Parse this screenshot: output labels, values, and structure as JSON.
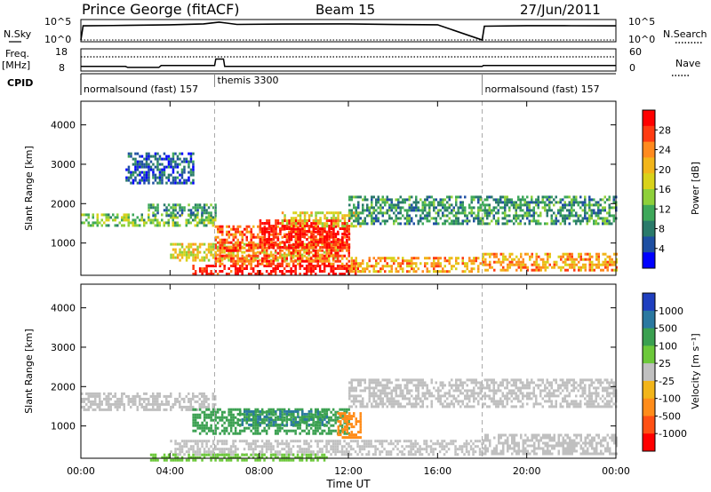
{
  "header": {
    "station": "Prince George (fitACF)",
    "beam": "Beam 15",
    "date": "27/Jun/2011"
  },
  "panels": {
    "nsky": {
      "label": "N.Sky",
      "tick_top": "10^5",
      "tick_bottom": "10^0"
    },
    "nsearch": {
      "label": "N.Search",
      "tick_top": "10^5",
      "tick_bottom": "10^0"
    },
    "freq": {
      "label_line1": "Freq.",
      "label_line2": "[MHz]",
      "tick_top": "18",
      "tick_bottom": "8"
    },
    "nave": {
      "label": "Nave",
      "tick_top": "60",
      "tick_bottom": "0"
    },
    "cpid": {
      "label": "CPID",
      "segments": [
        {
          "start": 0,
          "end": 6,
          "text": "normalsound (fast) 157"
        },
        {
          "start": 6,
          "end": 18,
          "text": "themis 3300"
        },
        {
          "start": 18,
          "end": 24,
          "text": "normalsound (fast) 157"
        }
      ]
    }
  },
  "x_axis": {
    "title": "Time UT",
    "range_hours": [
      0,
      24
    ],
    "ticks": [
      {
        "h": 0,
        "label": "00:00"
      },
      {
        "h": 4,
        "label": "04:00"
      },
      {
        "h": 8,
        "label": "08:00"
      },
      {
        "h": 12,
        "label": "12:00"
      },
      {
        "h": 16,
        "label": "16:00"
      },
      {
        "h": 20,
        "label": "20:00"
      },
      {
        "h": 24,
        "label": "00:00"
      }
    ],
    "mode_change_hours": [
      6,
      18
    ]
  },
  "power_colorbar": {
    "title": "Power [dB]",
    "labels": [
      "28",
      "24",
      "20",
      "16",
      "12",
      "8",
      "4"
    ],
    "colors": [
      "#ff0000",
      "#ff3b12",
      "#ff8a1e",
      "#f2b51a",
      "#d9d21a",
      "#8ed03a",
      "#3ea85a",
      "#2a7a6a",
      "#1e4fa2",
      "#0000ff"
    ]
  },
  "velocity_colorbar": {
    "title": "Velocity [m s⁻¹]",
    "labels": [
      "1000",
      "500",
      "100",
      "25",
      "-25",
      "-100",
      "-500",
      "-1000"
    ],
    "colors": [
      "#1f3fbf",
      "#2a78a0",
      "#3aa050",
      "#6cc83a",
      "#c0c0c0",
      "#f2b51a",
      "#ff8c1a",
      "#ff5014",
      "#ff0000"
    ]
  },
  "chart_data": [
    {
      "type": "line",
      "title": "N.Sky / N.Search",
      "xlabel": "",
      "ylabel": "N.Sky",
      "yscale": "log",
      "ylim": [
        "10^0",
        "10^5"
      ],
      "series": [
        {
          "name": "N.Sky",
          "x": [
            0,
            0.1,
            2,
            4,
            5.5,
            6.2,
            7,
            9,
            12,
            14,
            16,
            18,
            18.1,
            20,
            22,
            24
          ],
          "y": [
            1,
            6000,
            8000,
            12000,
            20000,
            60000,
            15000,
            18000,
            20000,
            14000,
            12000,
            1,
            5000,
            7000,
            6500,
            6000
          ]
        },
        {
          "name": "N.Search",
          "x": [
            0,
            24
          ],
          "y": [
            1,
            1
          ]
        }
      ]
    },
    {
      "type": "line",
      "title": "",
      "ylabel": "Freq. [MHz]",
      "ylim": [
        8,
        18
      ],
      "y2label": "Nave",
      "y2lim": [
        0,
        60
      ],
      "series": [
        {
          "name": "Freq. [MHz]",
          "x": [
            0,
            2,
            2.1,
            3.5,
            3.6,
            6,
            6.05,
            6.4,
            6.45,
            18,
            18.05,
            24
          ],
          "y": [
            9.5,
            9.5,
            9.0,
            9.0,
            10.0,
            10.0,
            13.5,
            13.5,
            9.5,
            9.5,
            10.0,
            10.0
          ]
        },
        {
          "name": "Nave",
          "x": [
            0,
            24
          ],
          "y": [
            40,
            40
          ]
        }
      ]
    },
    {
      "type": "heatmap",
      "title": "Power",
      "xlabel": "Time UT",
      "ylabel": "Slant Range [km]",
      "xlim": [
        0,
        24
      ],
      "ylim": [
        180,
        4600
      ],
      "y_ticks": [
        1000,
        2000,
        3000,
        4000
      ],
      "colorbar_label": "Power [dB]",
      "colorbar_ticks": [
        4,
        8,
        12,
        16,
        20,
        24,
        28
      ],
      "regions": [
        {
          "t0": 0,
          "t1": 6,
          "r0": 1450,
          "r1": 1750,
          "value": 12
        },
        {
          "t0": 3,
          "t1": 6,
          "r0": 1700,
          "r1": 2000,
          "value": 8
        },
        {
          "t0": 4,
          "t1": 11.5,
          "r0": 550,
          "r1": 1000,
          "value": 16
        },
        {
          "t0": 5,
          "t1": 12.5,
          "r0": 200,
          "r1": 450,
          "value": 28
        },
        {
          "t0": 6,
          "t1": 12,
          "r0": 450,
          "r1": 1450,
          "value": 24
        },
        {
          "t0": 8,
          "t1": 12,
          "r0": 900,
          "r1": 1600,
          "value": 28
        },
        {
          "t0": 9,
          "t1": 12.5,
          "r0": 1450,
          "r1": 1800,
          "value": 16
        },
        {
          "t0": 12,
          "t1": 18,
          "r0": 300,
          "r1": 650,
          "value": 20
        },
        {
          "t0": 12,
          "t1": 24,
          "r0": 1500,
          "r1": 2200,
          "value": 8
        },
        {
          "t0": 18,
          "t1": 24,
          "r0": 300,
          "r1": 750,
          "value": 20
        },
        {
          "t0": 2,
          "t1": 5,
          "r0": 2500,
          "r1": 3300,
          "value": 4
        }
      ]
    },
    {
      "type": "heatmap",
      "title": "Velocity",
      "xlabel": "Time UT",
      "ylabel": "Slant Range [km]",
      "xlim": [
        0,
        24
      ],
      "ylim": [
        180,
        4600
      ],
      "y_ticks": [
        1000,
        2000,
        3000,
        4000
      ],
      "colorbar_label": "Velocity [m s⁻¹]",
      "colorbar_ticks": [
        -1000,
        -500,
        -100,
        -25,
        25,
        100,
        500,
        1000
      ],
      "regions": [
        {
          "t0": 0,
          "t1": 6,
          "r0": 1400,
          "r1": 1850,
          "value": 0
        },
        {
          "t0": 5,
          "t1": 12,
          "r0": 800,
          "r1": 1450,
          "value": 150
        },
        {
          "t0": 7,
          "t1": 11,
          "r0": 1050,
          "r1": 1400,
          "value": 300
        },
        {
          "t0": 4,
          "t1": 18,
          "r0": 250,
          "r1": 650,
          "value": 0
        },
        {
          "t0": 11.5,
          "t1": 12.5,
          "r0": 700,
          "r1": 1350,
          "value": -300
        },
        {
          "t0": 12,
          "t1": 24,
          "r0": 1500,
          "r1": 2200,
          "value": 0
        },
        {
          "t0": 18,
          "t1": 24,
          "r0": 300,
          "r1": 800,
          "value": 0
        },
        {
          "t0": 3,
          "t1": 11,
          "r0": 150,
          "r1": 300,
          "value": 60
        }
      ]
    }
  ]
}
